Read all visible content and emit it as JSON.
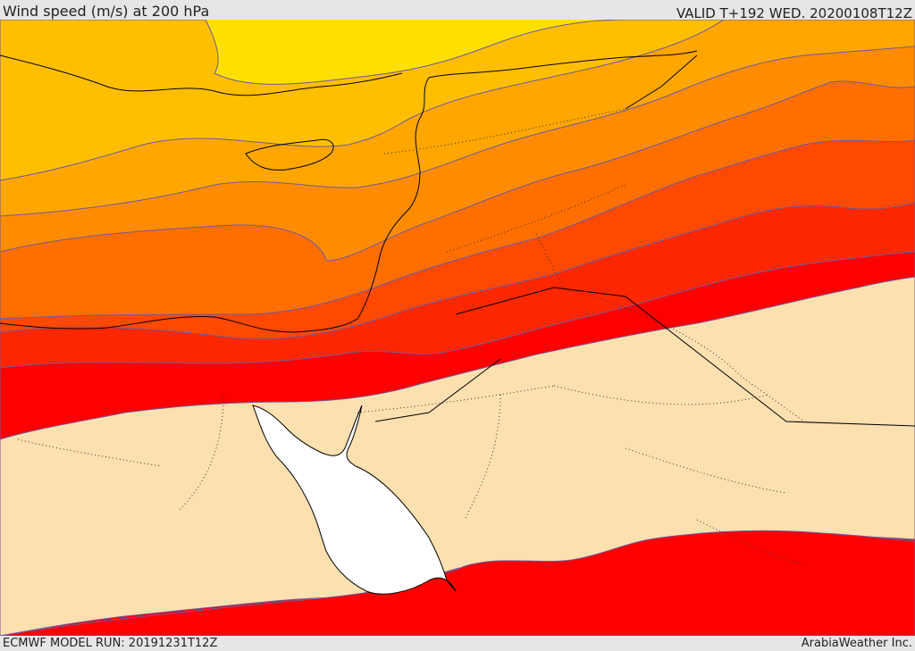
{
  "header": {
    "title": "Wind speed (m/s) at 200 hPa",
    "valid": "VALID T+192 WED. 20200108T12Z"
  },
  "footer": {
    "model_run": "ECMWF MODEL RUN: 20191231T12Z",
    "credit": "ArabiaWeather Inc."
  },
  "colors": {
    "band_yellow": "#fee000",
    "band_gold": "#ffbf00",
    "band_amber": "#ffa600",
    "band_orange": "#ff8c00",
    "band_dark_orange": "#ff6f00",
    "band_orange_red": "#ff4800",
    "band_red_orange": "#ff2700",
    "band_red": "#ff0000",
    "low_wind": "#fde0b0",
    "sea_water": "#ffffff",
    "contour": "#6e5a9e",
    "coastline": "#000000"
  }
}
